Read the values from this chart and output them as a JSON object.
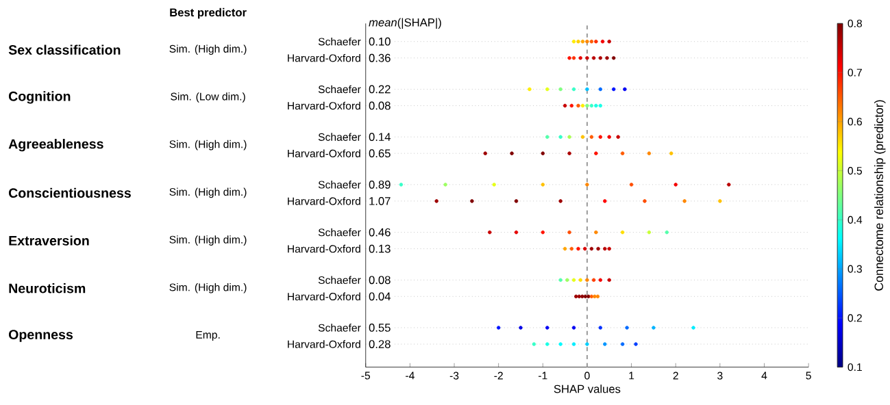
{
  "chart_data": {
    "type": "scatter",
    "orientation": "horizontal",
    "xlabel": "SHAP values",
    "clabel": "Connectome relationship (predictor)",
    "clim": [
      0.1,
      0.8
    ],
    "cticks": [
      0.1,
      0.2,
      0.3,
      0.4,
      0.5,
      0.6,
      0.7,
      0.8
    ],
    "xlim": [
      -5,
      5
    ],
    "xticks": [
      -5,
      -4,
      -3,
      -2,
      -1,
      0,
      1,
      2,
      3,
      4,
      5
    ],
    "categories": [
      "Schaefer",
      "Harvard-Oxford",
      "Schaefer",
      "Harvard-Oxford",
      "Schaefer",
      "Harvard-Oxford",
      "Schaefer",
      "Harvard-Oxford",
      "Schaefer",
      "Harvard-Oxford",
      "Schaefer",
      "Harvard-Oxford",
      "Schaefer",
      "Harvard-Oxford"
    ],
    "grid": "y",
    "marker": "circle",
    "ref_lines": [
      {
        "axis": "x",
        "value": 0,
        "color": "#999999",
        "line_style": "dashed"
      }
    ],
    "annotations": [
      "Best predictor",
      "*mean*(|SHAP|)",
      "Sex classification",
      "Sim. (High dim.)",
      "Cognition",
      "Sim. (Low dim.)",
      "Agreeableness",
      "Sim. (High dim.)",
      "Conscientiousness",
      "Sim. (High dim.)",
      "Extraversion",
      "Sim. (High dim.)",
      "Neuroticism",
      "Sim. (High dim.)",
      "Openness",
      "Emp.",
      "0.10",
      "0.36",
      "0.22",
      "0.08",
      "0.14",
      "0.65",
      "0.89",
      "1.07",
      "0.46",
      "0.13",
      "0.08",
      "0.04",
      "0.55",
      "0.28"
    ],
    "series": [
      {
        "values": [
          -0.3,
          -0.4,
          -1.3,
          -0.5,
          -0.9,
          -2.3,
          -4.2,
          -3.4,
          -2.2,
          -0.5,
          -0.6,
          -0.25,
          -2.0,
          -1.2
        ],
        "colors": [
          "#ffed00",
          "#ff1200",
          "#ffed00",
          "#c80000",
          "#54ffab",
          "#9d0000",
          "#37ffc8",
          "#9d0000",
          "#c80000",
          "#ffa400",
          "#54ffab",
          "#9d0000",
          "#0012ff",
          "#37ffc8"
        ]
      },
      {
        "values": [
          -0.2,
          -0.3,
          -0.9,
          -0.35,
          -0.6,
          -1.7,
          -3.2,
          -2.6,
          -1.6,
          -0.35,
          -0.45,
          -0.18,
          -1.5,
          -0.9
        ],
        "colors": [
          "#ffd000",
          "#ff2f00",
          "#e6ff1a",
          "#ff1200",
          "#37ffc8",
          "#800000",
          "#9dff62",
          "#800000",
          "#e60000",
          "#ff5b00",
          "#9dff62",
          "#9d0000",
          "#0000e6",
          "#1affe6"
        ]
      },
      {
        "values": [
          -0.1,
          -0.15,
          -0.6,
          -0.2,
          -0.4,
          -1.0,
          -2.1,
          -1.6,
          -1.0,
          -0.2,
          -0.3,
          -0.11,
          -0.9,
          -0.6
        ],
        "colors": [
          "#ffa400",
          "#e60000",
          "#80ff80",
          "#ff5b00",
          "#abff54",
          "#800000",
          "#e6ff1a",
          "#800000",
          "#ff1200",
          "#ff1200",
          "#e6ff1a",
          "#8e0000",
          "#0000f4",
          "#00fbff"
        ]
      },
      {
        "values": [
          0,
          0,
          -0.3,
          -0.1,
          -0.1,
          -0.4,
          -1.0,
          -0.6,
          -0.4,
          -0.05,
          -0.15,
          -0.04,
          -0.3,
          -0.3
        ],
        "colors": [
          "#ff8700",
          "#c80000",
          "#37ffc8",
          "#ffed00",
          "#ffc100",
          "#ab0000",
          "#ffc100",
          "#9d0000",
          "#ff4d00",
          "#d70000",
          "#ffde00",
          "#800000",
          "#0000f4",
          "#00edff"
        ]
      },
      {
        "values": [
          0.1,
          0.15,
          0,
          0,
          0.1,
          0.2,
          0,
          0.4,
          0.2,
          0.1,
          0,
          0.03,
          0.3,
          0
        ],
        "colors": [
          "#ff5b00",
          "#ba0000",
          "#00c1ff",
          "#80ff80",
          "#ff5b00",
          "#ff1200",
          "#ff8700",
          "#ff0400",
          "#ff8700",
          "#9d0000",
          "#ff8700",
          "#800000",
          "#002fff",
          "#00d0ff"
        ]
      },
      {
        "values": [
          0.2,
          0.3,
          0.3,
          0.1,
          0.3,
          0.8,
          1.0,
          1.3,
          0.8,
          0.25,
          0.15,
          0.1,
          0.9,
          0.4
        ],
        "colors": [
          "#ff2f00",
          "#ab0000",
          "#006aff",
          "#37ffc8",
          "#ff1200",
          "#ff5b00",
          "#ff4d00",
          "#ff4d00",
          "#ffde00",
          "#9d0000",
          "#ff3e00",
          "#ff5b00",
          "#006aff",
          "#0095ff"
        ]
      },
      {
        "values": [
          0.35,
          0.45,
          0.6,
          0.2,
          0.5,
          1.4,
          2.0,
          2.2,
          1.4,
          0.4,
          0.3,
          0.17,
          1.5,
          0.8
        ],
        "colors": [
          "#f40000",
          "#9d0000",
          "#0012ff",
          "#1affe6",
          "#f40000",
          "#ff8700",
          "#f40000",
          "#ff8700",
          "#c8ff37",
          "#ba0000",
          "#f40000",
          "#ff8700",
          "#00b3ff",
          "#006aff"
        ]
      },
      {
        "values": [
          0.5,
          0.6,
          0.85,
          0.3,
          0.7,
          1.9,
          3.2,
          3.0,
          1.8,
          0.5,
          0.5,
          0.24,
          2.4,
          1.1
        ],
        "colors": [
          "#c80000",
          "#800000",
          "#0000f4",
          "#1affe6",
          "#c80000",
          "#ffc100",
          "#ba0000",
          "#ffc100",
          "#54ffab",
          "#c80000",
          "#c80000",
          "#ff8700",
          "#00edff",
          "#003eff"
        ]
      }
    ]
  }
}
